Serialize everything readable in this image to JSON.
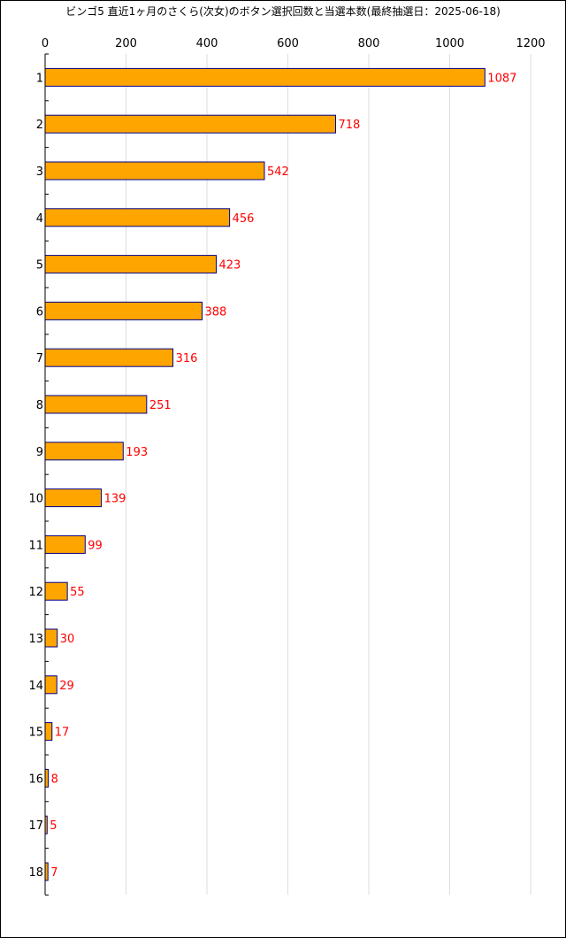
{
  "chart_data": {
    "type": "bar",
    "orientation": "horizontal",
    "title": "ビンゴ5 直近1ヶ月のさくら(次女)のボタン選択回数と当選本数(最終抽選日：2025-06-18)",
    "xlabel": "",
    "ylabel": "",
    "xlim": [
      0,
      1200
    ],
    "x_ticks": [
      0,
      200,
      400,
      600,
      800,
      1000,
      1200
    ],
    "categories": [
      "1",
      "2",
      "3",
      "4",
      "5",
      "6",
      "7",
      "8",
      "9",
      "10",
      "11",
      "12",
      "13",
      "14",
      "15",
      "16",
      "17",
      "18"
    ],
    "values": [
      1087,
      718,
      542,
      456,
      423,
      388,
      316,
      251,
      193,
      139,
      99,
      55,
      30,
      29,
      17,
      8,
      5,
      7
    ],
    "grid": "vertical",
    "legend": "none"
  },
  "colors": {
    "bar_fill": "#FFA500",
    "bar_stroke": "#00008B",
    "value_label": "#FF0000",
    "grid": "#DDDDDD",
    "axis": "#000000"
  }
}
